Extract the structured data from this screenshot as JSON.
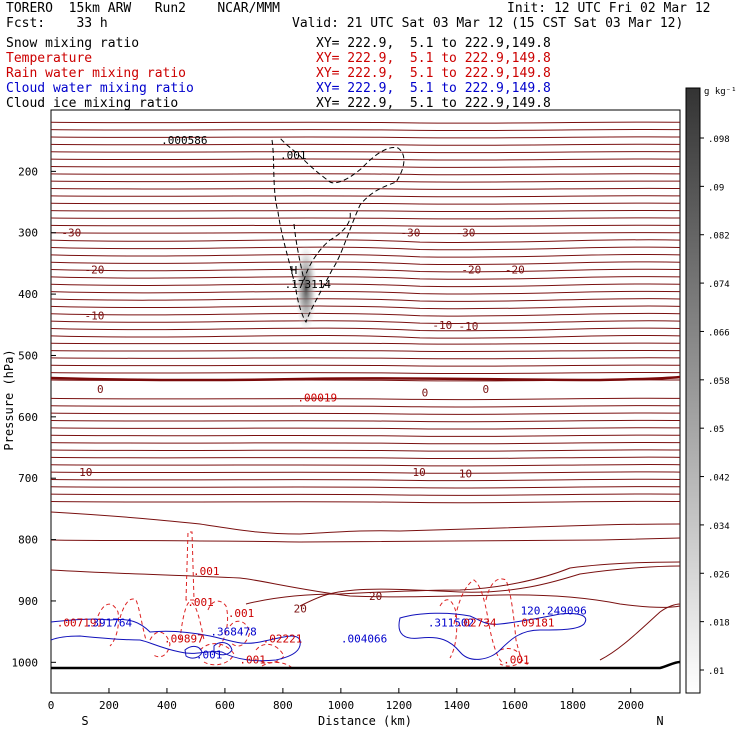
{
  "header": {
    "model": "TORERO  15km ARW   Run2    NCAR/MMM",
    "init": "Init: 12 UTC Fri 02 Mar 12",
    "fcst": "Fcst:    33 h",
    "valid": "Valid: 21 UTC Sat 03 Mar 12 (15 CST Sat 03 Mar 12)"
  },
  "legend": [
    {
      "label": "Snow mixing ratio",
      "xy": "XY= 222.9,  5.1 to 222.9,149.8",
      "color": "#000000"
    },
    {
      "label": "Temperature",
      "xy": "XY= 222.9,  5.1 to 222.9,149.8",
      "color": "#cc0000"
    },
    {
      "label": "Rain water mixing ratio",
      "xy": "XY= 222.9,  5.1 to 222.9,149.8",
      "color": "#cc0000"
    },
    {
      "label": "Cloud water mixing ratio",
      "xy": "XY= 222.9,  5.1 to 222.9,149.8",
      "color": "#0000cc"
    },
    {
      "label": "Cloud ice mixing ratio",
      "xy": "XY= 222.9,  5.1 to 222.9,149.8",
      "color": "#000000"
    }
  ],
  "chart_data": {
    "type": "cross-section",
    "xlabel": "Distance (km)",
    "ylabel": "Pressure (hPa)",
    "x_ticks": [
      0,
      200,
      400,
      600,
      800,
      1000,
      1200,
      1400,
      1600,
      1800,
      2000
    ],
    "y_ticks": [
      200,
      300,
      400,
      500,
      600,
      700,
      800,
      900,
      1000
    ],
    "xlim": [
      0,
      2170
    ],
    "ylim": [
      1050,
      100
    ],
    "x_end_labels": {
      "left": "S",
      "right": "N"
    },
    "temperature_contours": {
      "interval": 2,
      "labels": [
        {
          "x": 70,
          "p": 300,
          "text": "-30"
        },
        {
          "x": 1240,
          "p": 300,
          "text": "-30"
        },
        {
          "x": 1430,
          "p": 300,
          "text": "-30"
        },
        {
          "x": 150,
          "p": 360,
          "text": "-20"
        },
        {
          "x": 1450,
          "p": 360,
          "text": "-20"
        },
        {
          "x": 1600,
          "p": 360,
          "text": "-20"
        },
        {
          "x": 150,
          "p": 435,
          "text": "-10"
        },
        {
          "x": 1350,
          "p": 450,
          "text": "-10"
        },
        {
          "x": 1440,
          "p": 452,
          "text": "-10"
        },
        {
          "x": 170,
          "p": 555,
          "text": "0"
        },
        {
          "x": 1290,
          "p": 560,
          "text": "0"
        },
        {
          "x": 1500,
          "p": 555,
          "text": "0"
        },
        {
          "x": 120,
          "p": 690,
          "text": "10"
        },
        {
          "x": 1270,
          "p": 690,
          "text": "10"
        },
        {
          "x": 1430,
          "p": 692,
          "text": "10"
        },
        {
          "x": 860,
          "p": 912,
          "text": "20"
        },
        {
          "x": 1120,
          "p": 892,
          "text": "20"
        }
      ]
    },
    "snow_maximum": {
      "x": 875,
      "p": 400,
      "value": "H",
      "label": ".173114"
    },
    "annotations": [
      {
        "x": 380,
        "p": 155,
        "text": ".000586",
        "color": "#000000"
      },
      {
        "x": 790,
        "p": 180,
        "text": ".001",
        "color": "#000000"
      },
      {
        "x": 850,
        "p": 575,
        "text": ".00019",
        "color": "#cc0000"
      },
      {
        "x": 490,
        "p": 858,
        "text": ".001",
        "color": "#cc0000"
      },
      {
        "x": 470,
        "p": 908,
        "text": ".001",
        "color": "#cc0000"
      },
      {
        "x": 610,
        "p": 926,
        "text": ".001",
        "color": "#cc0000"
      },
      {
        "x": 20,
        "p": 942,
        "text": ".007191",
        "color": "#cc0000"
      },
      {
        "x": 120,
        "p": 942,
        "text": ".391764",
        "color": "#0000cc"
      },
      {
        "x": 390,
        "p": 968,
        "text": ".09897",
        "color": "#cc0000"
      },
      {
        "x": 550,
        "p": 956,
        "text": ".368478",
        "color": "#0000cc"
      },
      {
        "x": 730,
        "p": 968,
        "text": ".02221",
        "color": "#cc0000"
      },
      {
        "x": 1000,
        "p": 968,
        "text": ".004066",
        "color": "#0000cc"
      },
      {
        "x": 1300,
        "p": 942,
        "text": ".311502",
        "color": "#0000cc"
      },
      {
        "x": 1400,
        "p": 942,
        "text": ".02734",
        "color": "#cc0000"
      },
      {
        "x": 1620,
        "p": 922,
        "text": "120.249096",
        "color": "#0000cc"
      },
      {
        "x": 1600,
        "p": 942,
        "text": ".09181",
        "color": "#cc0000"
      },
      {
        "x": 500,
        "p": 994,
        "text": ".001",
        "color": "#0000cc"
      },
      {
        "x": 650,
        "p": 1002,
        "text": ".001",
        "color": "#cc0000"
      },
      {
        "x": 1560,
        "p": 1002,
        "text": ".001",
        "color": "#cc0000"
      }
    ],
    "colorbar": {
      "unit": "g kg⁻¹",
      "ticks": [
        ".01",
        ".018",
        ".026",
        ".034",
        ".042",
        ".05",
        ".058",
        ".066",
        ".074",
        ".082",
        ".09",
        ".098"
      ]
    }
  }
}
